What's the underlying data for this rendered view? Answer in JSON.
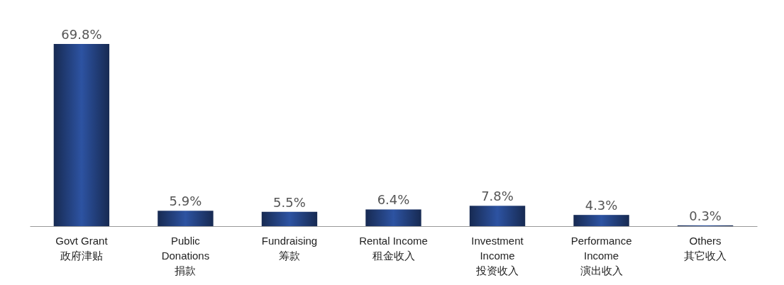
{
  "chart_data": {
    "type": "bar",
    "categories": [
      "Govt Grant\n政府津贴",
      "Public Donations\n捐款",
      "Fundraising\n筹款",
      "Rental Income\n租金收入",
      "Investment Income\n投资收入",
      "Performance Income\n演出收入",
      "Others\n其它收入"
    ],
    "values": [
      69.8,
      5.9,
      5.5,
      6.4,
      7.8,
      4.3,
      0.3
    ],
    "value_labels": [
      "69.8%",
      "5.9%",
      "5.5%",
      "6.4%",
      "7.8%",
      "4.3%",
      "0.3%"
    ],
    "color": "#1c3466"
  }
}
